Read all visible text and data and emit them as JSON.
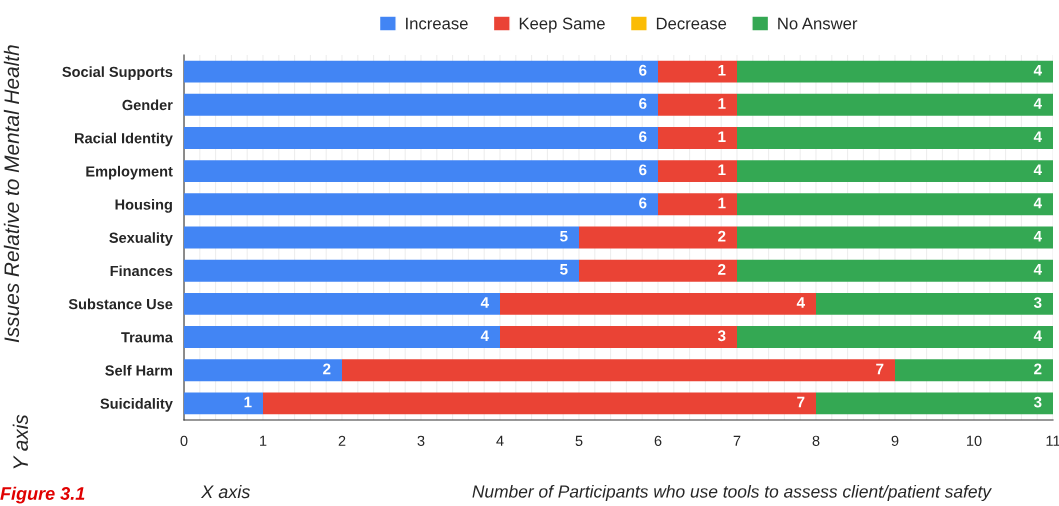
{
  "chart_data": {
    "type": "bar",
    "orientation": "horizontal",
    "stacked": true,
    "ylabel": "Issues Relative to Mental Health",
    "xlabel": "Number of Participants who use tools to assess client/patient safety",
    "annotations": [
      "Y axis",
      "X axis",
      "Figure 3.1"
    ],
    "categories": [
      "Social Supports",
      "Gender",
      "Racial Identity",
      "Employment",
      "Housing",
      "Sexuality",
      "Finances",
      "Substance Use",
      "Trauma",
      "Self Harm",
      "Suicidality"
    ],
    "series": [
      {
        "name": "Increase",
        "color": "#4285f4",
        "values": [
          6,
          6,
          6,
          6,
          6,
          5,
          5,
          4,
          4,
          2,
          1
        ],
        "value_labels": [
          "6",
          "6",
          "6",
          "6",
          "6",
          "5",
          "5",
          "4",
          "4",
          "2",
          "1"
        ]
      },
      {
        "name": "Keep Same",
        "color": "#ea4335",
        "values": [
          1,
          1,
          1,
          1,
          1,
          2,
          2,
          4,
          3,
          7,
          7
        ],
        "value_labels": [
          "1",
          "1",
          "1",
          "1",
          "1",
          "2",
          "2",
          "4",
          "3",
          "7",
          "7"
        ]
      },
      {
        "name": "Decrease",
        "color": "#fbbc04",
        "values": [
          0,
          0,
          0,
          0,
          0,
          0,
          0,
          0,
          0,
          0,
          0
        ],
        "value_labels": [
          null,
          null,
          null,
          null,
          null,
          null,
          null,
          null,
          null,
          null,
          null
        ]
      },
      {
        "name": "No Answer",
        "color": "#34a853",
        "values": [
          4,
          4,
          4,
          4,
          4,
          4,
          4,
          3,
          4,
          2,
          3
        ],
        "value_labels": [
          "4",
          "4",
          "4",
          "4",
          "4",
          "4",
          "4",
          "3",
          "4",
          "2",
          "3"
        ]
      }
    ],
    "xlim": [
      0,
      11
    ],
    "xticks": [
      0,
      {
        "value": 0.2,
        "label": null
      },
      {
        "value": 0.4,
        "label": null
      },
      {
        "value": 0.6,
        "label": null
      },
      {
        "value": 0.8,
        "label": null
      },
      1,
      {
        "value": 1.2,
        "label": null
      },
      {
        "value": 1.4,
        "label": null
      },
      {
        "value": 1.6,
        "label": null
      },
      {
        "value": 1.8,
        "label": null
      },
      2,
      {
        "value": 2.2,
        "label": null
      },
      {
        "value": 2.4,
        "label": null
      },
      {
        "value": 2.6,
        "label": null
      },
      {
        "value": 2.8,
        "label": null
      },
      3,
      {
        "value": 3.2,
        "label": null
      },
      {
        "value": 3.4,
        "label": null
      },
      {
        "value": 3.6,
        "label": null
      },
      {
        "value": 3.8,
        "label": null
      },
      4,
      {
        "value": 4.2,
        "label": null
      },
      {
        "value": 4.4,
        "label": null
      },
      {
        "value": 4.6,
        "label": null
      },
      {
        "value": 4.8,
        "label": null
      },
      5,
      {
        "value": 5.2,
        "label": null
      },
      {
        "value": 5.4,
        "label": null
      },
      {
        "value": 5.6,
        "label": null
      },
      {
        "value": 5.8,
        "label": null
      },
      6,
      {
        "value": 6.2,
        "label": null
      },
      {
        "value": 6.4,
        "label": null
      },
      {
        "value": 6.6,
        "label": null
      },
      {
        "value": 6.8,
        "label": null
      },
      7,
      {
        "value": 7.2,
        "label": null
      },
      {
        "value": 7.4,
        "label": null
      },
      {
        "value": 7.6,
        "label": null
      },
      {
        "value": 7.8,
        "label": null
      },
      8,
      {
        "value": 8.2,
        "label": null
      },
      {
        "value": 8.4,
        "label": null
      },
      {
        "value": 8.6,
        "label": null
      },
      {
        "value": 8.8,
        "label": null
      },
      9,
      {
        "value": 9.2,
        "label": null
      },
      {
        "value": 9.4,
        "label": null
      },
      {
        "value": 9.6,
        "label": null
      },
      {
        "value": 9.8,
        "label": null
      },
      10,
      {
        "value": 10.2,
        "label": null
      },
      {
        "value": 10.4,
        "label": null
      },
      {
        "value": 10.6,
        "label": null
      },
      {
        "value": 10.8,
        "label": null
      },
      11
    ],
    "grid": "x",
    "legend": "top"
  }
}
